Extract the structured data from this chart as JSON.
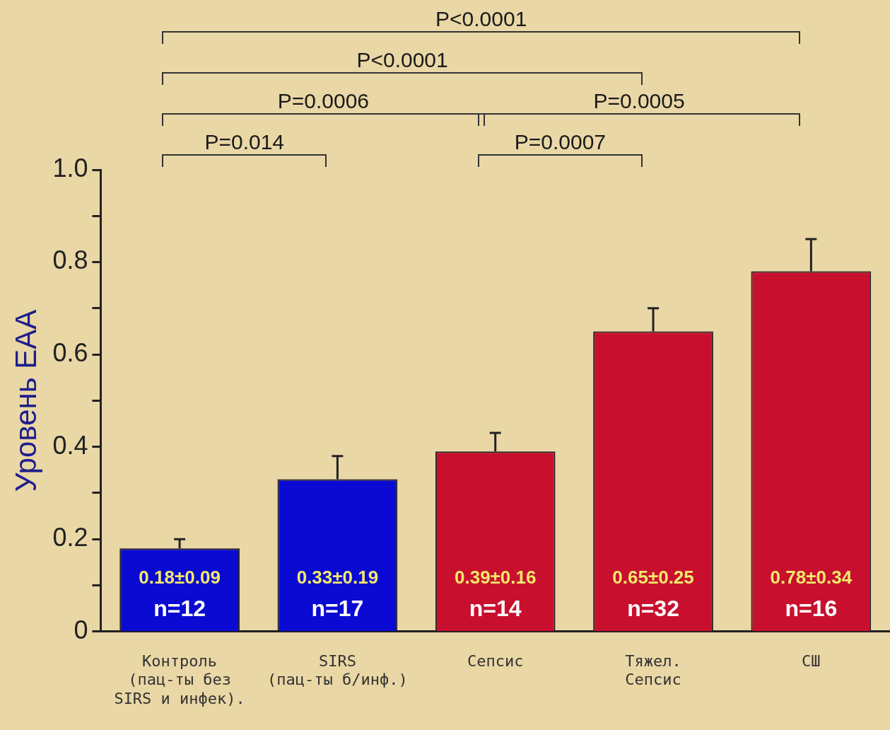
{
  "chart_data": {
    "type": "bar",
    "ylabel": "Уровень ЕАА",
    "categories": [
      "Контроль\n(пац-ты без\nSIRS и инфек).",
      "SIRS\n(пац-ты б/инф.)",
      "Сепсис",
      "Тяжел.\nСепсис",
      "СШ"
    ],
    "series": [
      {
        "values": [
          0.18,
          0.33,
          0.39,
          0.65,
          0.78
        ],
        "colors": [
          "#0a0ad2",
          "#0a0ad2",
          "#c8102e",
          "#c8102e",
          "#c8102e"
        ],
        "errors": [
          [
            0.18,
            0.2
          ],
          [
            0.33,
            0.38
          ],
          [
            0.39,
            0.43
          ],
          [
            0.65,
            0.7
          ],
          [
            0.78,
            0.85
          ]
        ],
        "value_labels": [
          "0.18±0.09\nn=12",
          "0.33±0.19\nn=17",
          "0.39±0.16\nn=14",
          "0.65±0.25\nn=32",
          "0.78±0.34\nn=16"
        ]
      }
    ],
    "ylim": [
      0,
      1
    ],
    "yticks": [
      {
        "value": 0,
        "label": "0"
      },
      {
        "value": 0.1,
        "label": null
      },
      0.2,
      {
        "value": 0.3,
        "label": null
      },
      0.4,
      {
        "value": 0.5,
        "label": null
      },
      0.6,
      {
        "value": 0.7,
        "label": null
      },
      0.8,
      {
        "value": 0.9,
        "label": null
      },
      {
        "value": 1,
        "label": "1.0"
      }
    ],
    "grid": false,
    "legend": false,
    "annotations": [
      "P=0.014",
      "P=0.0007",
      "P=0.0006",
      "P=0.0005",
      "P<0.0001",
      "P<0.0001"
    ]
  }
}
